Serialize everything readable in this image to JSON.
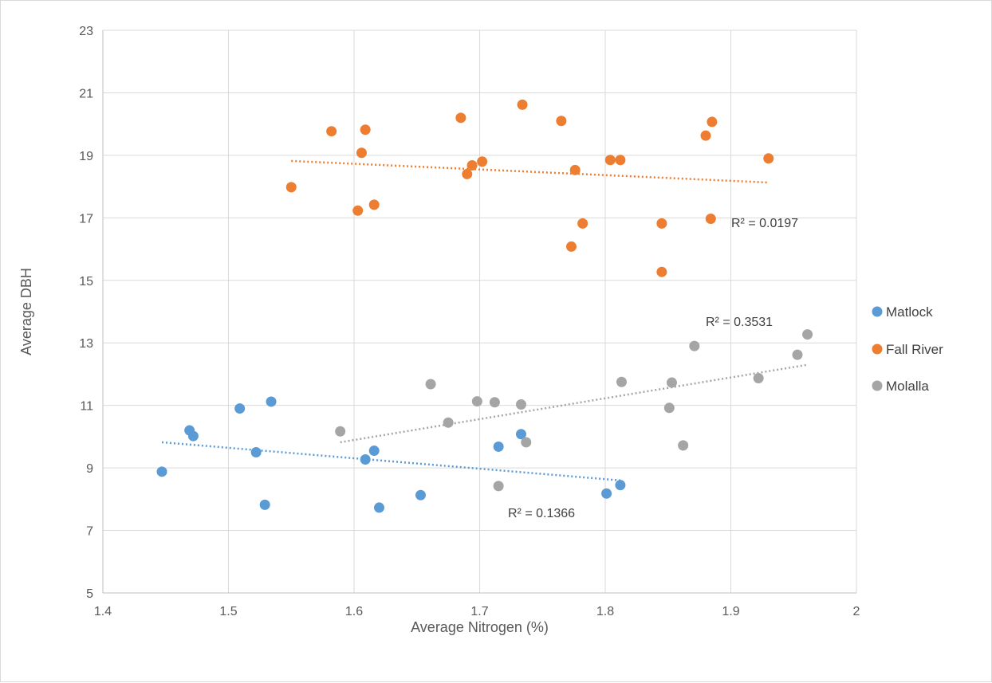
{
  "chart_data": {
    "type": "scatter",
    "title": "",
    "xlabel": "Average Nitrogen (%)",
    "ylabel": "Average DBH",
    "xlim": [
      1.4,
      2.0
    ],
    "ylim": [
      5,
      23
    ],
    "x_ticks": [
      "1.4",
      "1.5",
      "1.6",
      "1.7",
      "1.8",
      "1.9",
      "2"
    ],
    "y_ticks": [
      "5",
      "7",
      "9",
      "11",
      "13",
      "15",
      "17",
      "19",
      "21",
      "23"
    ],
    "grid": true,
    "legend_position": "right",
    "series": [
      {
        "name": "Matlock",
        "color": "#5b9bd5",
        "x": [
          1.447,
          1.469,
          1.472,
          1.509,
          1.522,
          1.529,
          1.534,
          1.609,
          1.616,
          1.62,
          1.653,
          1.715,
          1.733,
          1.801,
          1.812
        ],
        "y": [
          8.88,
          10.2,
          10.02,
          10.9,
          9.5,
          7.82,
          11.12,
          9.27,
          9.55,
          7.73,
          8.13,
          9.68,
          10.08,
          8.18,
          8.45
        ],
        "trendline": {
          "x": [
            1.447,
            1.812
          ],
          "y": [
            9.82,
            8.6
          ]
        },
        "r2_label": "R² = 0.1366"
      },
      {
        "name": "Fall River",
        "color": "#ed7d31",
        "x": [
          1.55,
          1.582,
          1.603,
          1.606,
          1.609,
          1.616,
          1.685,
          1.69,
          1.694,
          1.702,
          1.734,
          1.765,
          1.773,
          1.776,
          1.782,
          1.804,
          1.812,
          1.845,
          1.845,
          1.88,
          1.884,
          1.885,
          1.93
        ],
        "y": [
          17.98,
          19.77,
          17.23,
          19.08,
          19.82,
          17.42,
          20.2,
          18.4,
          18.68,
          18.8,
          20.62,
          20.1,
          16.08,
          18.53,
          16.82,
          18.85,
          18.85,
          15.27,
          16.82,
          19.63,
          16.97,
          20.07,
          18.9
        ],
        "trendline": {
          "x": [
            1.55,
            1.93
          ],
          "y": [
            18.82,
            18.13
          ]
        },
        "r2_label": "R² = 0.0197"
      },
      {
        "name": "Molalla",
        "color": "#a5a5a5",
        "x": [
          1.589,
          1.661,
          1.675,
          1.698,
          1.712,
          1.715,
          1.733,
          1.737,
          1.813,
          1.851,
          1.853,
          1.862,
          1.871,
          1.922,
          1.953,
          1.961
        ],
        "y": [
          10.17,
          11.68,
          10.45,
          11.13,
          11.1,
          8.42,
          11.03,
          9.82,
          11.75,
          10.92,
          11.73,
          9.72,
          12.9,
          11.87,
          12.62,
          13.27
        ],
        "trendline": {
          "x": [
            1.589,
            1.961
          ],
          "y": [
            9.82,
            12.3
          ]
        },
        "r2_label": "R² = 0.3531"
      }
    ]
  }
}
